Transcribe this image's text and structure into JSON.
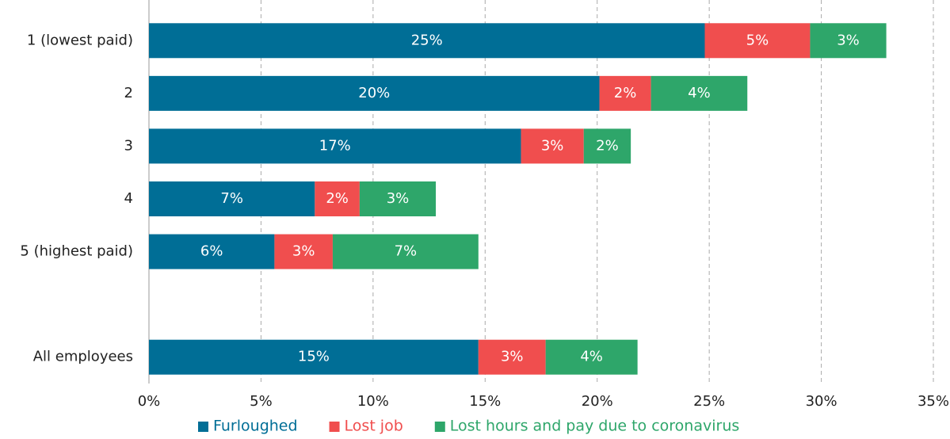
{
  "chart_data": {
    "type": "stacked-barh",
    "categories": [
      "1 (lowest paid)",
      "2",
      "3",
      "4",
      "5 (highest paid)",
      null,
      "All employees"
    ],
    "series": [
      {
        "name": "Furloughed",
        "color": "#006e96",
        "values": [
          24.8,
          20.1,
          16.6,
          7.4,
          5.6,
          null,
          14.7
        ],
        "value_labels": [
          "25%",
          "20%",
          "17%",
          "7%",
          "6%",
          null,
          "15%"
        ]
      },
      {
        "name": "Lost job",
        "color": "#f04e4e",
        "values": [
          4.7,
          2.3,
          2.8,
          2.0,
          2.6,
          null,
          3.0
        ],
        "value_labels": [
          "5%",
          "2%",
          "3%",
          "2%",
          "3%",
          null,
          "3%"
        ]
      },
      {
        "name": "Lost hours and pay due to coronavirus",
        "color": "#2ea66a",
        "values": [
          3.4,
          4.3,
          2.1,
          3.4,
          6.5,
          null,
          4.1
        ],
        "value_labels": [
          "3%",
          "4%",
          "2%",
          "3%",
          "7%",
          null,
          "4%"
        ]
      }
    ],
    "xlim": [
      0,
      35
    ],
    "xticks": [
      {
        "value": 0,
        "label": "0%"
      },
      {
        "value": 5,
        "label": "5%"
      },
      {
        "value": 10,
        "label": "10%"
      },
      {
        "value": 15,
        "label": "15%"
      },
      {
        "value": 20,
        "label": "20%"
      },
      {
        "value": 25,
        "label": "25%"
      },
      {
        "value": 30,
        "label": "30%"
      },
      {
        "value": 35,
        "label": "35%"
      }
    ],
    "grid": true,
    "legend": "bottom"
  }
}
